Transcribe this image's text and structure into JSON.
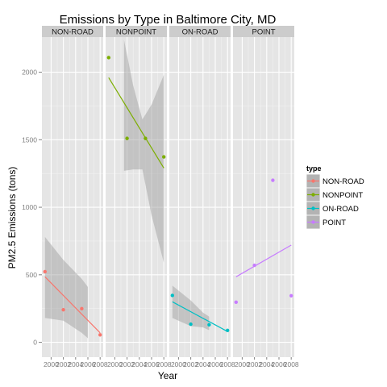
{
  "chart_data": {
    "type": "scatter",
    "title": "Emissions by Type in Baltimore City, MD",
    "xlabel": "Year",
    "ylabel": "PM2.5 Emissions (tons)",
    "x_ticks": [
      1999,
      2002,
      2005,
      2008
    ],
    "x_tick_labels": [
      "2000",
      "2002",
      "2004",
      "2006",
      "2008"
    ],
    "x_tick_values": [
      2000,
      2002,
      2004,
      2006,
      2008
    ],
    "xlim": [
      1998.5,
      2008.5
    ],
    "ylim": [
      -110,
      2260
    ],
    "y_ticks": [
      0,
      500,
      1000,
      1500,
      2000
    ],
    "y_tick_labels": [
      "0",
      "500",
      "1000",
      "1500",
      "2000"
    ],
    "legend": {
      "title": "type",
      "position": "right"
    },
    "facets": [
      {
        "name": "NON-ROAD",
        "color": "#F8766D",
        "points": [
          [
            1999,
            523
          ],
          [
            2002,
            241
          ],
          [
            2005,
            249
          ],
          [
            2008,
            55
          ]
        ],
        "fit": [
          [
            1999,
            485
          ],
          [
            2008,
            70
          ]
        ],
        "band": {
          "upper": [
            [
              1999,
              780
            ],
            [
              2002,
              610
            ],
            [
              2005,
              470
            ],
            [
              2006,
              410
            ]
          ],
          "lower": [
            [
              1999,
              180
            ],
            [
              2002,
              160
            ],
            [
              2005,
              70
            ],
            [
              2006,
              30
            ]
          ],
          "x_range": [
            1999,
            2006
          ]
        }
      },
      {
        "name": "NONPOINT",
        "color": "#7CAE00",
        "points": [
          [
            1999,
            2108
          ],
          [
            2002,
            1510
          ],
          [
            2005,
            1510
          ],
          [
            2008,
            1373
          ]
        ],
        "fit": [
          [
            1999,
            1960
          ],
          [
            2008,
            1290
          ]
        ],
        "band": {
          "upper": [
            [
              2001.5,
              2240
            ],
            [
              2003,
              1900
            ],
            [
              2004.5,
              1650
            ],
            [
              2006,
              1760
            ],
            [
              2008,
              1980
            ]
          ],
          "lower": [
            [
              2001.5,
              1270
            ],
            [
              2003,
              1280
            ],
            [
              2004.5,
              1280
            ],
            [
              2006,
              940
            ],
            [
              2008,
              590
            ]
          ],
          "x_range": [
            2001.5,
            2008
          ]
        }
      },
      {
        "name": "ON-ROAD",
        "color": "#00BFC4",
        "points": [
          [
            1999,
            347
          ],
          [
            2002,
            134
          ],
          [
            2005,
            130
          ],
          [
            2008,
            88
          ]
        ],
        "fit": [
          [
            1999,
            300
          ],
          [
            2008,
            80
          ]
        ],
        "band": {
          "upper": [
            [
              1999,
              420
            ],
            [
              2002,
              310
            ],
            [
              2004,
              220
            ],
            [
              2005,
              190
            ]
          ],
          "lower": [
            [
              1999,
              180
            ],
            [
              2002,
              120
            ],
            [
              2004,
              110
            ],
            [
              2005,
              90
            ]
          ],
          "x_range": [
            1999,
            2005
          ]
        }
      },
      {
        "name": "POINT",
        "color": "#C77CFF",
        "points": [
          [
            1999,
            297
          ],
          [
            2002,
            570
          ],
          [
            2005,
            1200
          ],
          [
            2008,
            345
          ]
        ],
        "fit": [
          [
            1999,
            485
          ],
          [
            2008,
            720
          ]
        ],
        "band": null
      }
    ]
  }
}
